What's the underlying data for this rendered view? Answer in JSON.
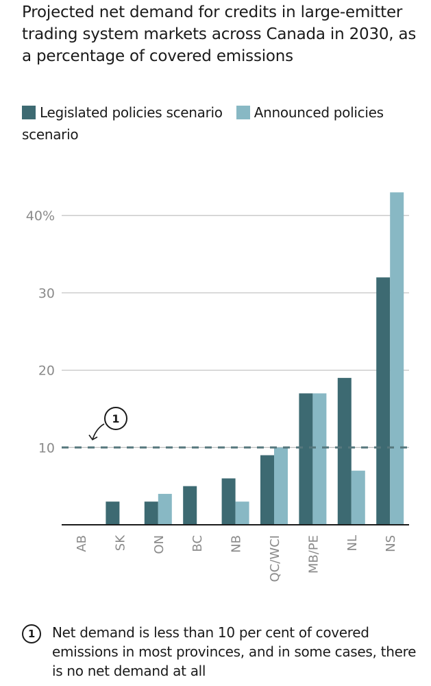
{
  "chart_data": {
    "type": "bar",
    "title": "Projected net demand for credits in large-emitter trading system markets across Canada in 2030, as a percentage of covered emissions",
    "categories": [
      "AB",
      "SK",
      "ON",
      "BC",
      "NB",
      "QC/WCI",
      "MB/PE",
      "NL",
      "NS"
    ],
    "series": [
      {
        "name": "Legislated policies scenario",
        "color": "#3d6a72",
        "values": [
          0,
          3,
          3,
          5,
          6,
          9,
          17,
          19,
          32
        ]
      },
      {
        "name": "Announced policies scenario",
        "color": "#88b8c4",
        "values": [
          0,
          0,
          4,
          0,
          3,
          10,
          17,
          7,
          43
        ]
      }
    ],
    "ylim": [
      0,
      45
    ],
    "yticks": [
      {
        "value": 10,
        "label": "10"
      },
      {
        "value": 20,
        "label": "20"
      },
      {
        "value": 30,
        "label": "30"
      },
      {
        "value": 40,
        "label": "40%"
      }
    ],
    "grid": true,
    "legend": "top",
    "reference_line": {
      "value": 10,
      "style": "dashed",
      "annotation": "1"
    },
    "xlabel": "",
    "ylabel": ""
  },
  "note": {
    "marker": "1",
    "text": "Net demand is less than 10 per cent of covered emissions in most provinces, and in some cases, there is no net demand at all"
  }
}
